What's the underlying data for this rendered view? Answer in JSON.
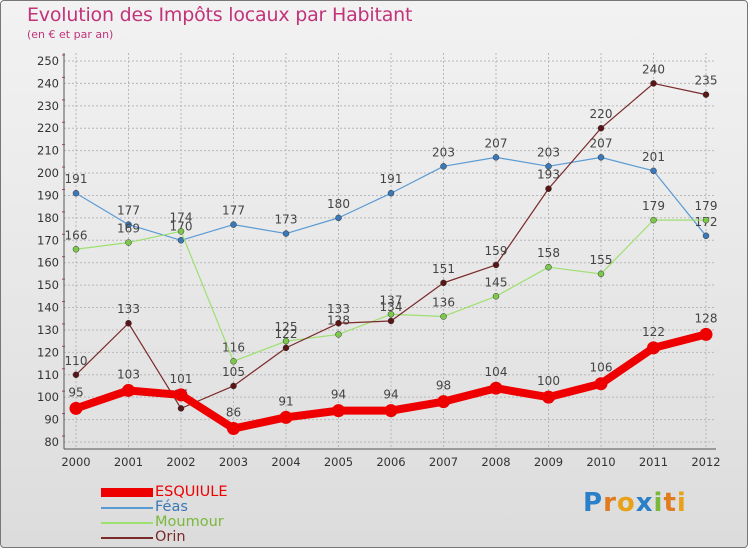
{
  "header": {
    "title": "Evolution des Impôts locaux par Habitant",
    "subtitle": "(en € et par an)"
  },
  "logo": {
    "text": "Proxiti",
    "letters": [
      "P",
      "r",
      "o",
      "x",
      "i",
      "t",
      "i"
    ],
    "colors": [
      "#2a7fc9",
      "#e07b1f",
      "#e8a21a",
      "#2a7fc9",
      "#7ab83b",
      "#e07b1f",
      "#e8a21a"
    ]
  },
  "colors": {
    "title": "#c2337a",
    "grid": "#b8b8b8",
    "axis": "#555555",
    "tick_mark": "#c2337a"
  },
  "chart_data": {
    "type": "line",
    "title": "Evolution des Impôts locaux par Habitant",
    "subtitle": "(en € et par an)",
    "xlabel": "",
    "ylabel": "",
    "ylim": [
      80,
      250
    ],
    "ytick_step": 10,
    "x": [
      "2000",
      "2001",
      "2002",
      "2003",
      "2004",
      "2005",
      "2006",
      "2007",
      "2008",
      "2009",
      "2010",
      "2011",
      "2012"
    ],
    "legend_position": "bottom-left",
    "series": [
      {
        "name": "Féas",
        "color": "#5b9bd5",
        "dot": "#3a78b8",
        "width": 1.2,
        "values": [
          191,
          177,
          170,
          177,
          173,
          180,
          191,
          203,
          207,
          203,
          207,
          201,
          172
        ],
        "label_offset": -10
      },
      {
        "name": "Moumour",
        "color": "#9ee070",
        "dot": "#7cc84a",
        "width": 1.2,
        "values": [
          166,
          169,
          174,
          116,
          125,
          128,
          137,
          136,
          145,
          158,
          155,
          179,
          179
        ],
        "label_offset": -10
      },
      {
        "name": "Orin",
        "color": "#7a2a2a",
        "dot": "#5a1515",
        "width": 1.2,
        "values": [
          110,
          133,
          95,
          105,
          122,
          133,
          134,
          151,
          159,
          193,
          220,
          240,
          235
        ],
        "label_offset": -10,
        "labels": [
          "110",
          "133",
          "95",
          "105",
          "122",
          "133",
          "134",
          "151",
          "159",
          "193",
          "220",
          "240",
          "235"
        ]
      },
      {
        "name": "ESQUIULE",
        "color": "#ee0000",
        "dot": "#ee0000",
        "width": 8,
        "values": [
          95,
          103,
          101,
          86,
          91,
          94,
          94,
          98,
          104,
          100,
          106,
          122,
          128
        ],
        "label_offset": -12
      }
    ],
    "legend_order": [
      "ESQUIULE",
      "Féas",
      "Moumour",
      "Orin"
    ]
  }
}
